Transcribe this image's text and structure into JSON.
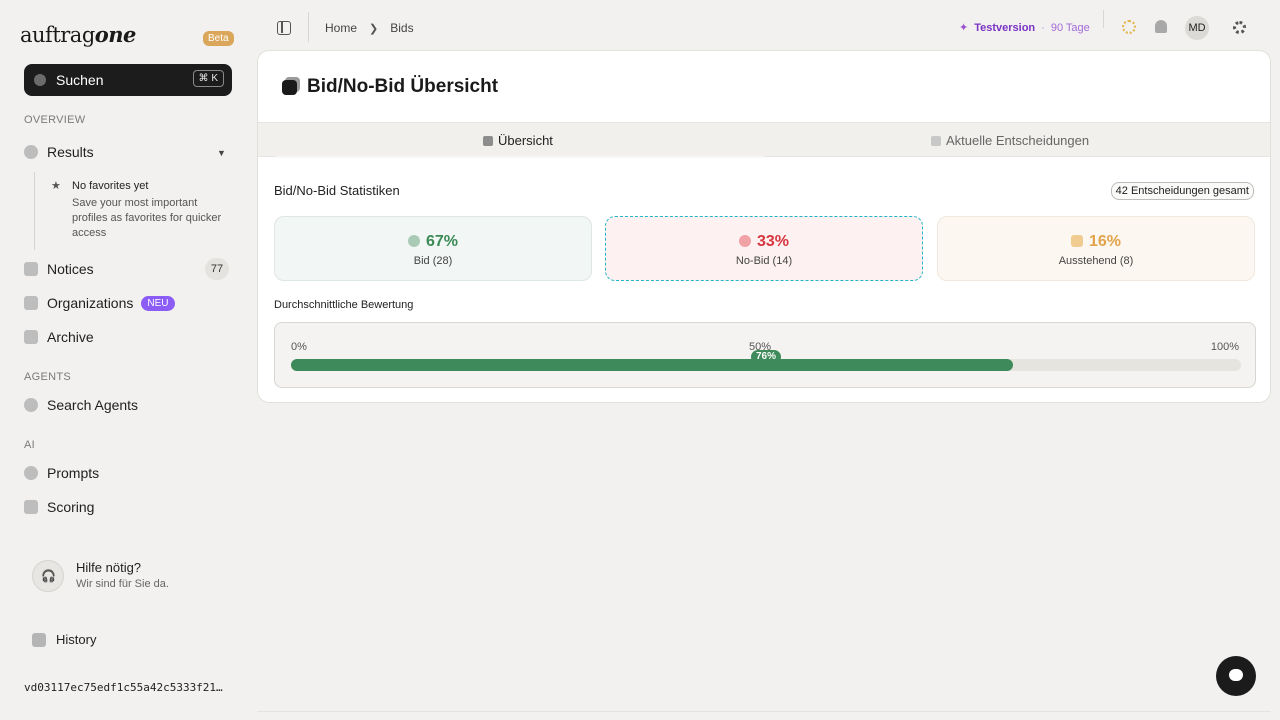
{
  "sidebar": {
    "logo_regular": "auftrag",
    "logo_bold": "one",
    "beta": "Beta",
    "search_label": "Suchen",
    "search_shortcut": "⌘ K",
    "section_overview": "OVERVIEW",
    "results": "Results",
    "favorites_title": "No favorites yet",
    "favorites_text": "Save your most important profiles as favorites for quicker access",
    "notices": "Notices",
    "notices_count": "77",
    "organizations": "Organizations",
    "organizations_badge": "NEU",
    "archive": "Archive",
    "section_agents": "AGENTS",
    "search_agents": "Search Agents",
    "section_ai": "AI",
    "prompts": "Prompts",
    "scoring": "Scoring",
    "help_title": "Hilfe nötig?",
    "help_text": "Wir sind für Sie da.",
    "history": "History",
    "hash": "vd03117ec75edf1c55a42c5333f21…"
  },
  "topbar": {
    "breadcrumb_home": "Home",
    "breadcrumb_current": "Bids",
    "trial_label": "Testversion",
    "trial_separator": "·",
    "trial_days": "90 Tage",
    "avatar_initials": "MD"
  },
  "card": {
    "title": "Bid/No-Bid Übersicht",
    "tab_overview": "Übersicht",
    "tab_current": "Aktuelle Entscheidungen",
    "stats_title": "Bid/No-Bid Statistiken",
    "total": "42 Entscheidungen gesamt",
    "bid_pct": "67%",
    "bid_label": "Bid (28)",
    "nobid_pct": "33%",
    "nobid_label": "No-Bid (14)",
    "pending_pct": "16%",
    "pending_label": "Ausstehend (8)",
    "avg_title": "Durchschnittliche Bewertung",
    "scale_0": "0%",
    "scale_50": "50%",
    "scale_100": "100%",
    "avg_value": "76%",
    "avg_fraction": 0.76
  },
  "colors": {
    "bid": "#3b8a57",
    "nobid": "#d7353f",
    "pending": "#e2a34a",
    "trial": "#7a33c4"
  },
  "icons": [
    "search-icon",
    "results-icon",
    "star-icon",
    "notices-icon",
    "organizations-icon",
    "archive-icon",
    "search-agents-icon",
    "prompts-icon",
    "scoring-icon",
    "headset-icon",
    "history-icon",
    "sidebar-toggle-icon",
    "chevron-right-icon",
    "sparkle-icon",
    "sun-icon",
    "bell-icon",
    "gear-icon",
    "chat-icon",
    "check-icon",
    "x-icon",
    "clock-icon"
  ]
}
